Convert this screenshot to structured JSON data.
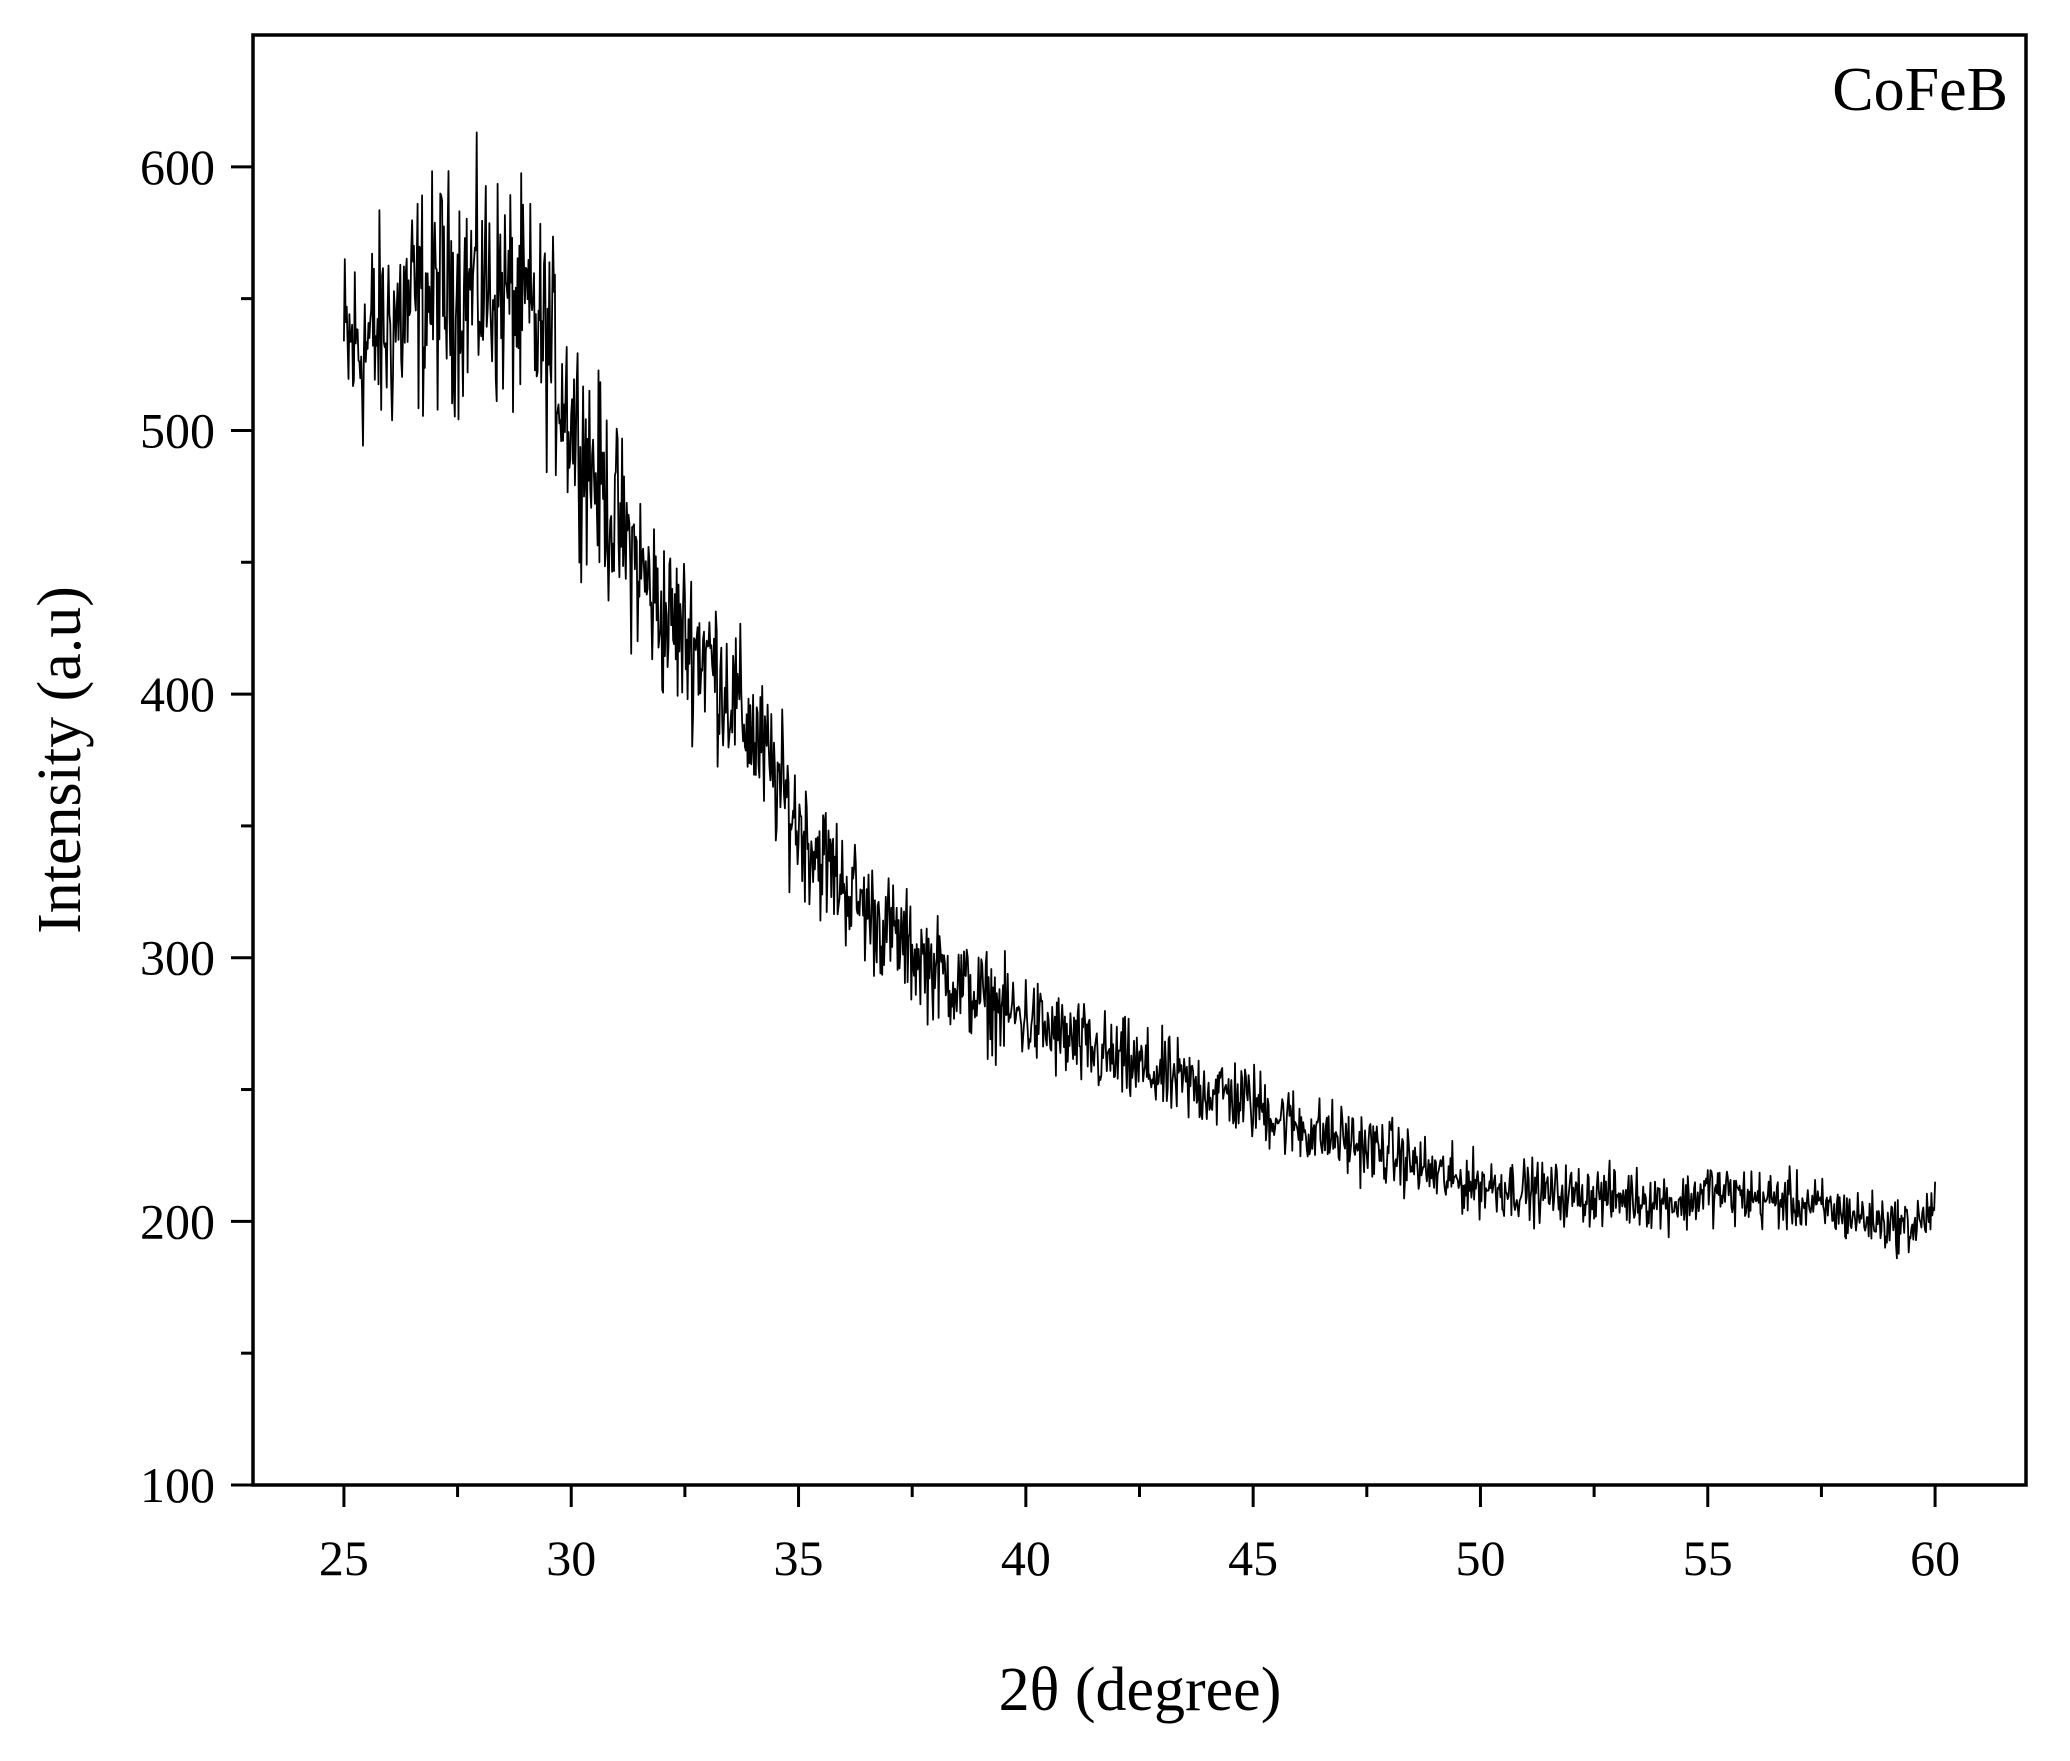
{
  "chart_data": {
    "type": "line",
    "panel_label": "CoFeB",
    "xlabel": "2θ (degree)",
    "ylabel": "Intensity (a.u)",
    "xlim": [
      23,
      62
    ],
    "ylim": [
      100,
      650
    ],
    "x_ticks": [
      25,
      30,
      35,
      40,
      45,
      50,
      55,
      60
    ],
    "x_minor_ticks": [
      27.5,
      32.5,
      37.5,
      42.5,
      47.5,
      52.5,
      57.5
    ],
    "y_ticks": [
      100,
      200,
      300,
      400,
      500,
      600
    ],
    "y_minor_ticks": [
      150,
      250,
      350,
      450,
      550
    ],
    "grid": false,
    "line_color": "#000000",
    "series": [
      {
        "x": [
          25.0,
          25.5,
          26.0,
          26.5,
          27.0,
          27.5,
          28.0,
          28.5,
          29.0,
          29.5,
          30.0,
          30.5,
          31.0,
          31.5,
          32.0,
          32.5,
          33.0,
          33.5,
          34.0,
          34.5,
          35.0,
          35.5,
          36.0,
          36.5,
          37.0,
          37.5,
          38.0,
          38.5,
          39.0,
          39.5,
          40.0,
          40.5,
          41.0,
          41.5,
          42.0,
          42.5,
          43.0,
          43.5,
          44.0,
          44.5,
          45.0,
          45.5,
          46.0,
          46.5,
          47.0,
          47.5,
          48.0,
          48.5,
          49.0,
          49.5,
          50.0,
          50.5,
          51.0,
          51.5,
          52.0,
          52.5,
          53.0,
          53.5,
          54.0,
          54.5,
          55.0,
          55.5,
          56.0,
          56.5,
          57.0,
          57.5,
          58.0,
          58.5,
          59.0,
          59.5,
          60.0
        ],
        "values": [
          530,
          533,
          540,
          548,
          552,
          554,
          555,
          552,
          545,
          533,
          505,
          485,
          465,
          448,
          430,
          422,
          415,
          400,
          385,
          368,
          350,
          338,
          328,
          318,
          310,
          302,
          296,
          290,
          285,
          280,
          277,
          272,
          268,
          264,
          261,
          258,
          255,
          252,
          250,
          248,
          245,
          240,
          236,
          233,
          231,
          228,
          226,
          222,
          218,
          215,
          214,
          213,
          212,
          211,
          210,
          210,
          209,
          209,
          208,
          207,
          212,
          210,
          209,
          208,
          207,
          205,
          203,
          201,
          199,
          198,
          205
        ]
      }
    ]
  }
}
